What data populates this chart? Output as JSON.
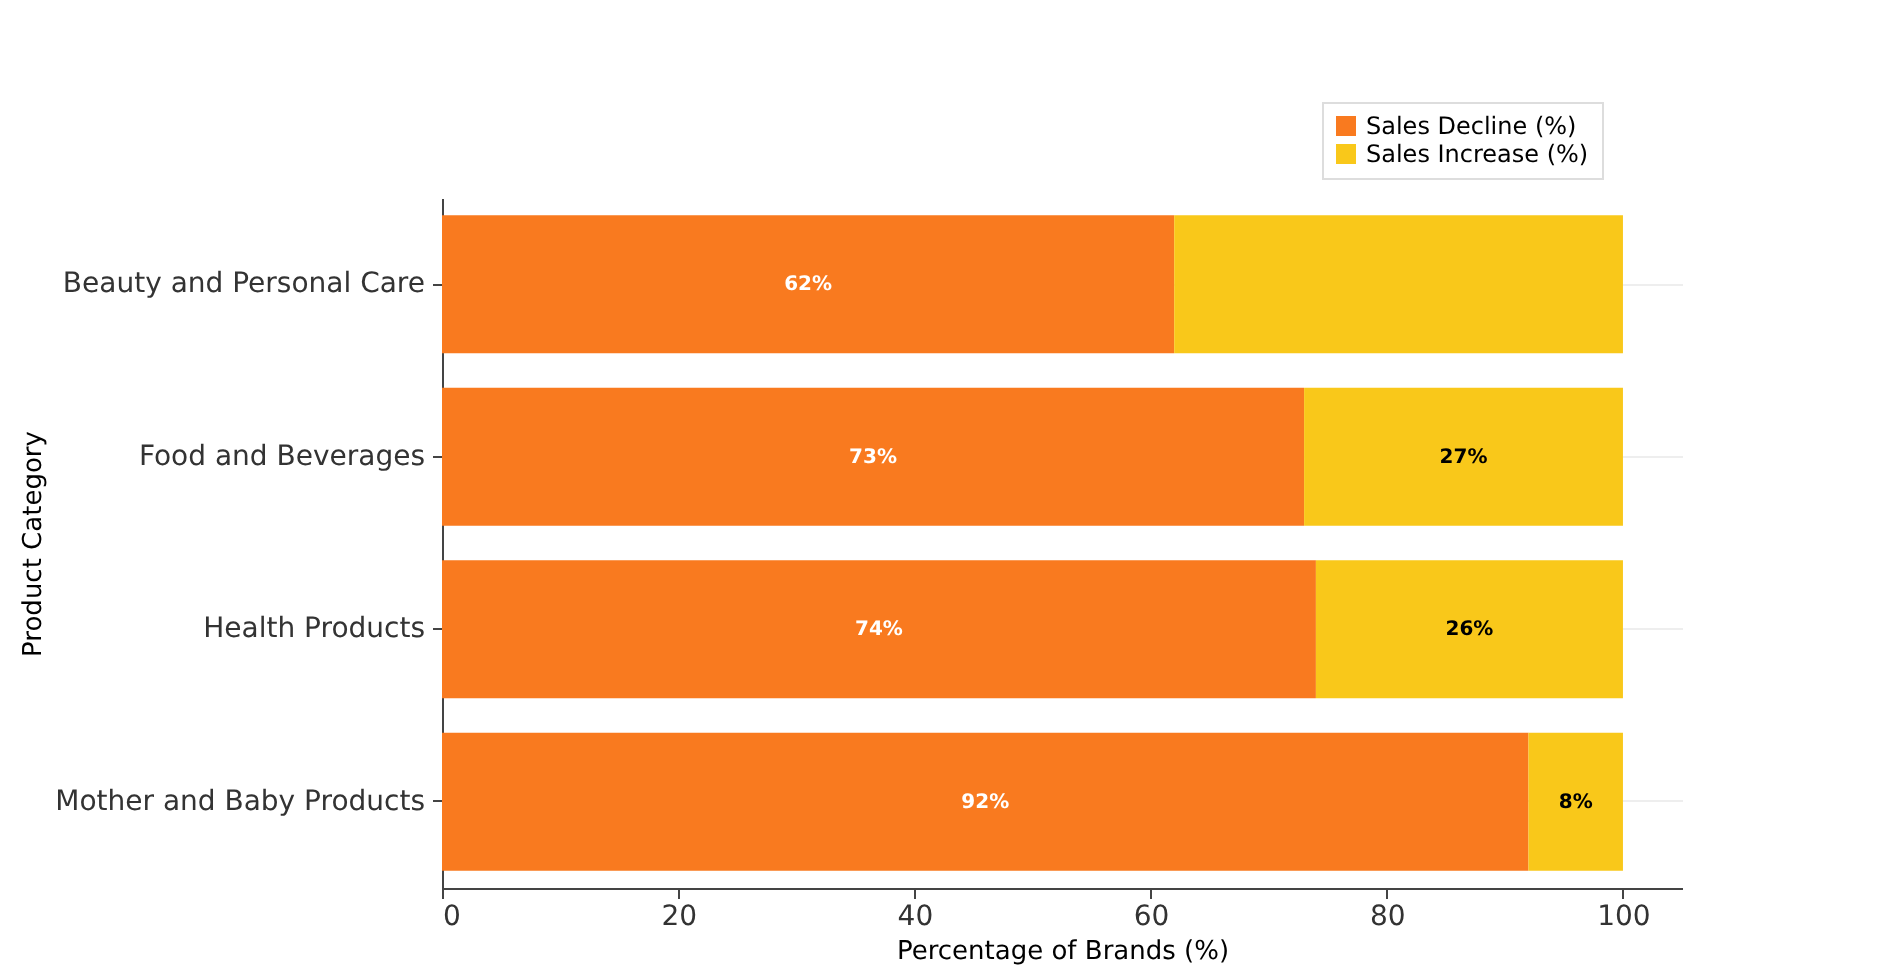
{
  "chart_data": {
    "type": "bar",
    "orientation": "horizontal",
    "stacked": true,
    "xlabel": "Percentage of Brands (%)",
    "ylabel": "Product Category",
    "categories": [
      "Beauty and Personal Care",
      "Food and Beverages",
      "Health Products",
      "Mother and Baby Products"
    ],
    "series": [
      {
        "name": "Sales Decline (%)",
        "color": "#f97a1f",
        "values": [
          62,
          73,
          74,
          92
        ],
        "value_labels": [
          "62%",
          "73%",
          "74%",
          "92%"
        ]
      },
      {
        "name": "Sales Increase (%)",
        "color": "#f9c81a",
        "values": [
          38,
          27,
          26,
          8
        ],
        "value_labels": [
          null,
          "27%",
          "26%",
          "8%"
        ]
      }
    ],
    "xlim": [
      0,
      105
    ],
    "xticks": [
      0,
      20,
      40,
      60,
      80,
      100
    ],
    "grid": "y",
    "legend": "top right"
  }
}
